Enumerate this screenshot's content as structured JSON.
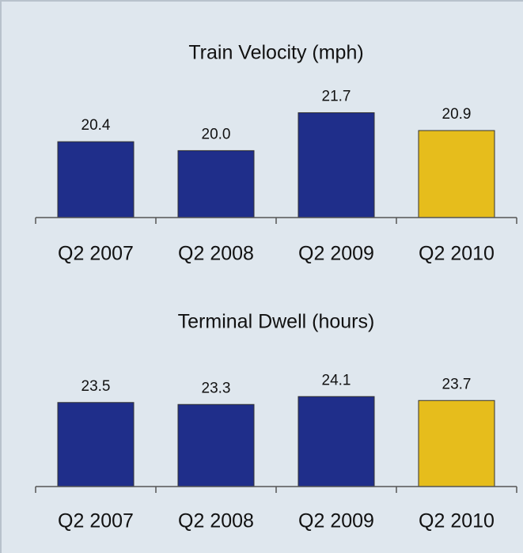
{
  "chart_data": [
    {
      "type": "bar",
      "title": "Train Velocity (mph)",
      "categories": [
        "Q2 2007",
        "Q2 2008",
        "Q2 2009",
        "Q2 2010"
      ],
      "values": [
        20.4,
        20.0,
        21.7,
        20.9
      ],
      "value_labels": [
        "20.4",
        "20.0",
        "21.7",
        "20.9"
      ],
      "colors": [
        "#1f2e8a",
        "#1f2e8a",
        "#1f2e8a",
        "#e6bd1c"
      ],
      "ylim": [
        17,
        22
      ]
    },
    {
      "type": "bar",
      "title": "Terminal Dwell (hours)",
      "categories": [
        "Q2 2007",
        "Q2 2008",
        "Q2 2009",
        "Q2 2010"
      ],
      "values": [
        23.5,
        23.3,
        24.1,
        23.7
      ],
      "value_labels": [
        "23.5",
        "23.3",
        "24.1",
        "23.7"
      ],
      "colors": [
        "#1f2e8a",
        "#1f2e8a",
        "#1f2e8a",
        "#e6bd1c"
      ],
      "ylim": [
        15,
        25
      ]
    }
  ]
}
